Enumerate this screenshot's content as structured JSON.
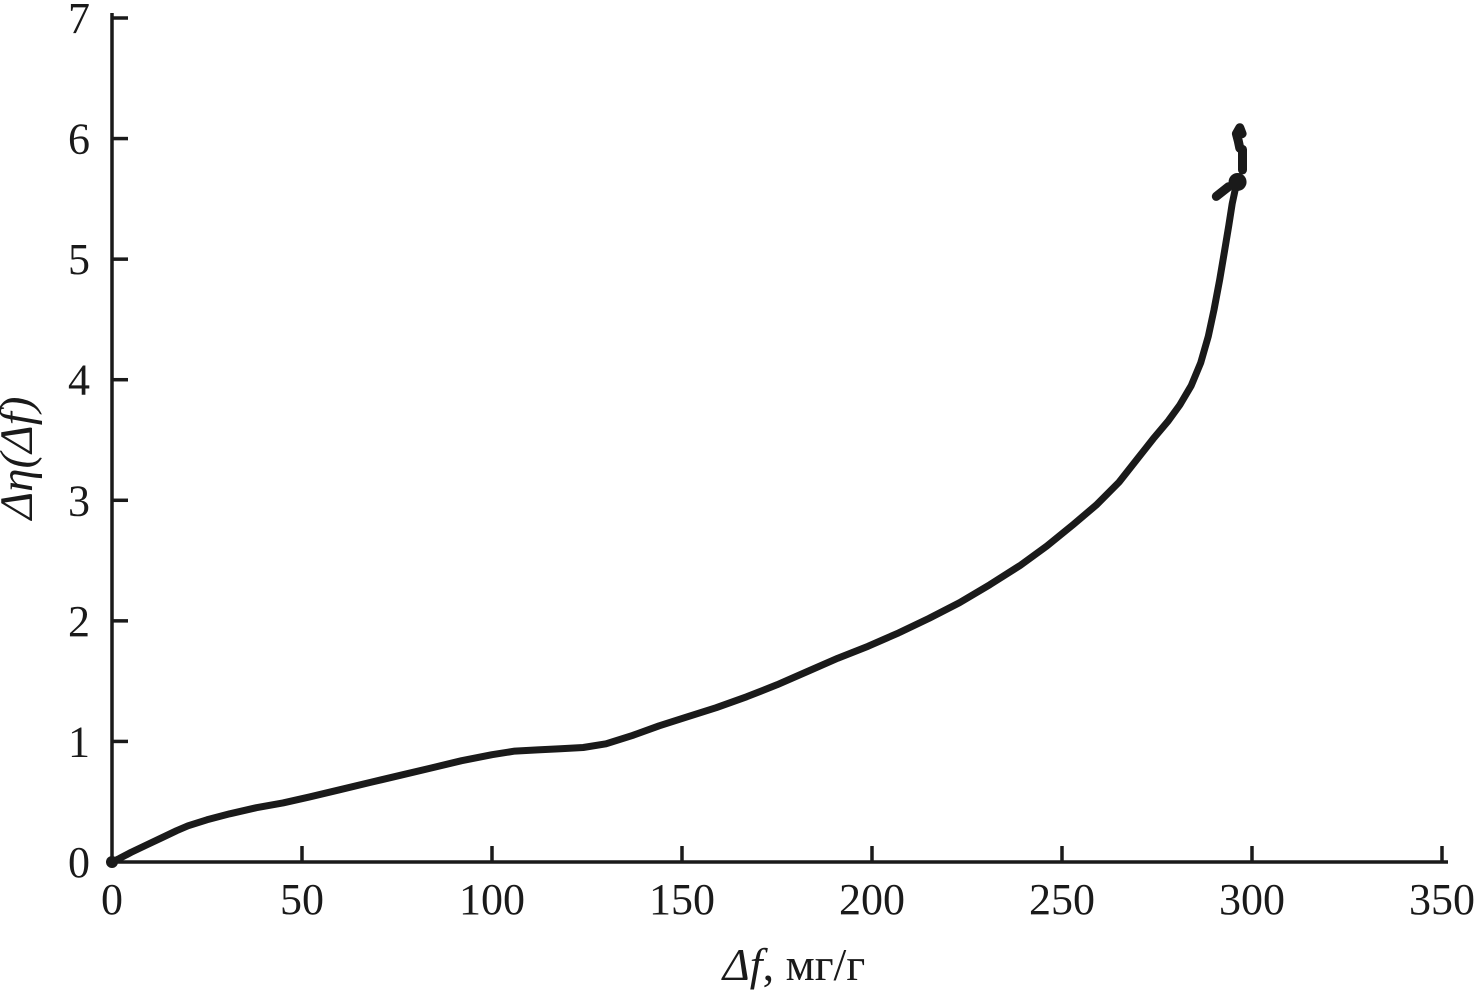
{
  "figure": {
    "background": "#ffffff",
    "ink": "#1a1a1a"
  },
  "chart_data": {
    "type": "line",
    "title": "",
    "xlabel": "Δf, мг/г",
    "xlabel_parts": {
      "italic": "Δf",
      "rest": ", мг/г"
    },
    "ylabel": "Δη(Δf)",
    "xlim": [
      0,
      350
    ],
    "ylim": [
      0,
      7
    ],
    "xticks": [
      0,
      50,
      100,
      150,
      200,
      250,
      300,
      350
    ],
    "yticks": [
      0,
      1,
      2,
      3,
      4,
      5,
      6,
      7
    ],
    "grid": false,
    "legend": null,
    "series": [
      {
        "name": "main-curve",
        "style": "solid",
        "points": [
          [
            0,
            0
          ],
          [
            2,
            0.03
          ],
          [
            5,
            0.08
          ],
          [
            9,
            0.14
          ],
          [
            13,
            0.2
          ],
          [
            17,
            0.26
          ],
          [
            20,
            0.3
          ],
          [
            25,
            0.35
          ],
          [
            31,
            0.4
          ],
          [
            38,
            0.45
          ],
          [
            45,
            0.49
          ],
          [
            52,
            0.54
          ],
          [
            60,
            0.6
          ],
          [
            68,
            0.66
          ],
          [
            76,
            0.72
          ],
          [
            84,
            0.78
          ],
          [
            92,
            0.84
          ],
          [
            100,
            0.89
          ],
          [
            106,
            0.92
          ],
          [
            112,
            0.93
          ],
          [
            118,
            0.94
          ],
          [
            124,
            0.95
          ],
          [
            130,
            0.98
          ],
          [
            137,
            1.05
          ],
          [
            144,
            1.13
          ],
          [
            151,
            1.2
          ],
          [
            159,
            1.28
          ],
          [
            167,
            1.37
          ],
          [
            175,
            1.47
          ],
          [
            183,
            1.58
          ],
          [
            191,
            1.69
          ],
          [
            199,
            1.79
          ],
          [
            207,
            1.9
          ],
          [
            215,
            2.02
          ],
          [
            223,
            2.15
          ],
          [
            231,
            2.3
          ],
          [
            239,
            2.46
          ],
          [
            246,
            2.62
          ],
          [
            253,
            2.8
          ],
          [
            259,
            2.96
          ],
          [
            265,
            3.15
          ],
          [
            270,
            3.35
          ],
          [
            274,
            3.51
          ],
          [
            278,
            3.66
          ],
          [
            281,
            3.79
          ],
          [
            284,
            3.95
          ],
          [
            286.5,
            4.14
          ],
          [
            288.5,
            4.36
          ],
          [
            290,
            4.58
          ],
          [
            291.5,
            4.83
          ],
          [
            292.8,
            5.07
          ],
          [
            293.9,
            5.28
          ],
          [
            294.8,
            5.46
          ],
          [
            295.6,
            5.58
          ]
        ]
      },
      {
        "name": "end-dash-hook",
        "style": "fragment",
        "points": [
          [
            290.6,
            5.52
          ],
          [
            293.8,
            5.6
          ]
        ]
      },
      {
        "name": "end-dash-vertical",
        "style": "fragment",
        "points": [
          [
            297.5,
            5.74
          ],
          [
            297.5,
            5.91
          ]
        ]
      },
      {
        "name": "end-dash-top-cluster",
        "style": "fragment",
        "points": [
          [
            296.8,
            5.92
          ],
          [
            296.4,
            5.98
          ],
          [
            295.9,
            6.04
          ],
          [
            296.8,
            6.09
          ],
          [
            297.4,
            6.04
          ]
        ]
      }
    ],
    "markers": [
      {
        "name": "origin-dot",
        "x": 0,
        "y": 0,
        "r": 6
      },
      {
        "name": "end-knot-dot",
        "x": 296.2,
        "y": 5.64,
        "r": 9
      }
    ]
  }
}
